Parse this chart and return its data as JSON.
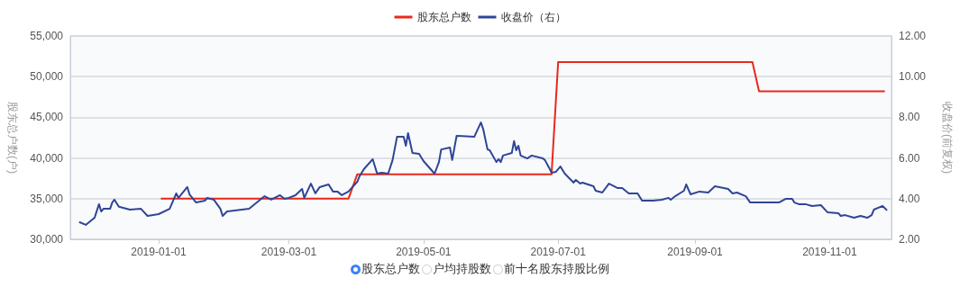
{
  "chart_data": {
    "type": "line",
    "ylabel": "股东总户数(户)",
    "y2label": "收盘价(前复权)",
    "series": [
      {
        "name": "股东总户数",
        "color": "#e8291c",
        "x": [
          "2019-01-02",
          "2019-03-28",
          "2019-04-01",
          "2019-06-28",
          "2019-07-01",
          "2019-09-27",
          "2019-09-30",
          "2019-11-26"
        ],
        "values": [
          35000,
          35000,
          38000,
          38000,
          51800,
          51800,
          48200,
          48200
        ]
      },
      {
        "name": "收盘价（右）",
        "color": "#2f4596",
        "axis": "y2",
        "x": [
          "2018-11-26",
          "2018-11-29",
          "2018-12-03",
          "2018-12-05",
          "2018-12-06",
          "2018-12-07",
          "2018-12-10",
          "2018-12-11",
          "2018-12-12",
          "2018-12-14",
          "2018-12-19",
          "2018-12-24",
          "2018-12-27",
          "2019-01-01",
          "2019-01-06",
          "2019-01-09",
          "2019-01-10",
          "2019-01-14",
          "2019-01-15",
          "2019-01-18",
          "2019-01-22",
          "2019-01-23",
          "2019-01-26",
          "2019-01-29",
          "2019-01-30",
          "2019-02-01",
          "2019-02-11",
          "2019-02-18",
          "2019-02-21",
          "2019-02-25",
          "2019-02-27",
          "2019-03-01",
          "2019-03-04",
          "2019-03-07",
          "2019-03-08",
          "2019-03-11",
          "2019-03-13",
          "2019-03-15",
          "2019-03-19",
          "2019-03-21",
          "2019-03-23",
          "2019-03-25",
          "2019-03-28",
          "2019-04-01",
          "2019-04-02",
          "2019-04-04",
          "2019-04-08",
          "2019-04-10",
          "2019-04-12",
          "2019-04-15",
          "2019-04-17",
          "2019-04-19",
          "2019-04-22",
          "2019-04-23",
          "2019-04-24",
          "2019-04-26",
          "2019-04-29",
          "2019-05-01",
          "2019-05-06",
          "2019-05-08",
          "2019-05-09",
          "2019-05-13",
          "2019-05-14",
          "2019-05-16",
          "2019-05-24",
          "2019-05-27",
          "2019-05-28",
          "2019-05-30",
          "2019-05-31",
          "2019-06-03",
          "2019-06-04",
          "2019-06-05",
          "2019-06-06",
          "2019-06-10",
          "2019-06-11",
          "2019-06-12",
          "2019-06-13",
          "2019-06-14",
          "2019-06-17",
          "2019-06-19",
          "2019-06-24",
          "2019-06-25",
          "2019-06-27",
          "2019-06-28",
          "2019-06-30",
          "2019-07-02",
          "2019-07-04",
          "2019-07-08",
          "2019-07-09",
          "2019-07-11",
          "2019-07-12",
          "2019-07-17",
          "2019-07-18",
          "2019-07-21",
          "2019-07-24",
          "2019-07-28",
          "2019-07-30",
          "2019-08-02",
          "2019-08-06",
          "2019-08-08",
          "2019-08-13",
          "2019-08-17",
          "2019-08-20",
          "2019-08-21",
          "2019-08-23",
          "2019-08-27",
          "2019-08-28",
          "2019-08-30",
          "2019-09-03",
          "2019-09-07",
          "2019-09-10",
          "2019-09-16",
          "2019-09-18",
          "2019-09-20",
          "2019-09-24",
          "2019-09-26",
          "2019-10-09",
          "2019-10-12",
          "2019-10-15",
          "2019-10-16",
          "2019-10-18",
          "2019-10-21",
          "2019-10-24",
          "2019-10-28",
          "2019-10-31",
          "2019-11-05",
          "2019-11-06",
          "2019-11-08",
          "2019-11-12",
          "2019-11-15",
          "2019-11-18",
          "2019-11-20",
          "2019-11-21",
          "2019-11-25",
          "2019-11-27"
        ],
        "values": [
          2.85,
          2.71,
          3.06,
          3.73,
          3.37,
          3.5,
          3.5,
          3.81,
          3.95,
          3.6,
          3.46,
          3.5,
          3.15,
          3.24,
          3.5,
          4.26,
          4.04,
          4.57,
          4.21,
          3.81,
          3.9,
          4.04,
          3.95,
          3.5,
          3.15,
          3.37,
          3.5,
          4.12,
          3.95,
          4.17,
          3.99,
          4.04,
          4.17,
          4.48,
          4.04,
          4.74,
          4.26,
          4.57,
          4.7,
          4.35,
          4.35,
          4.17,
          4.35,
          4.83,
          5.1,
          5.45,
          5.94,
          5.23,
          5.27,
          5.23,
          5.9,
          7.04,
          7.04,
          6.6,
          7.22,
          6.25,
          6.2,
          5.85,
          5.23,
          5.8,
          6.42,
          6.51,
          5.9,
          7.09,
          7.04,
          7.75,
          7.44,
          6.42,
          6.38,
          5.8,
          5.94,
          5.8,
          6.12,
          6.25,
          6.83,
          6.38,
          6.6,
          6.12,
          5.98,
          6.12,
          5.98,
          5.9,
          5.5,
          5.27,
          5.32,
          5.58,
          5.23,
          4.79,
          4.92,
          4.74,
          4.79,
          4.61,
          4.39,
          4.3,
          4.74,
          4.52,
          4.52,
          4.26,
          4.26,
          3.9,
          3.9,
          3.95,
          4.04,
          3.95,
          4.12,
          4.39,
          4.7,
          4.21,
          4.35,
          4.3,
          4.61,
          4.48,
          4.26,
          4.3,
          4.12,
          3.81,
          3.81,
          3.99,
          3.99,
          3.81,
          3.73,
          3.73,
          3.64,
          3.68,
          3.33,
          3.28,
          3.15,
          3.19,
          3.06,
          3.15,
          3.06,
          3.19,
          3.46,
          3.64,
          3.42
        ]
      }
    ],
    "xlim": [
      "2018-11-22",
      "2019-11-29"
    ],
    "xticks": [
      "2019-01-01",
      "2019-03-01",
      "2019-05-01",
      "2019-07-01",
      "2019-09-01",
      "2019-11-01"
    ],
    "ylim": [
      30000,
      55000
    ],
    "yticks": [
      {
        "value": 30000,
        "label": "30,000"
      },
      {
        "value": 35000,
        "label": "35,000"
      },
      {
        "value": 40000,
        "label": "40,000"
      },
      {
        "value": 45000,
        "label": "45,000"
      },
      {
        "value": 50000,
        "label": "50,000"
      },
      {
        "value": 55000,
        "label": "55,000"
      }
    ],
    "y2lim": [
      2,
      12
    ],
    "y2ticks": [
      {
        "value": 2,
        "label": "2.00"
      },
      {
        "value": 4,
        "label": "4.00"
      },
      {
        "value": 6,
        "label": "6.00"
      },
      {
        "value": 8,
        "label": "8.00"
      },
      {
        "value": 10,
        "label": "10.00"
      },
      {
        "value": 12,
        "label": "12.00"
      }
    ],
    "grid": "y",
    "legend": "top",
    "marker": "none",
    "line_style": "solid",
    "annotations": [
      "股东总户数",
      "户均持股数",
      "前十名股东持股比例"
    ]
  }
}
